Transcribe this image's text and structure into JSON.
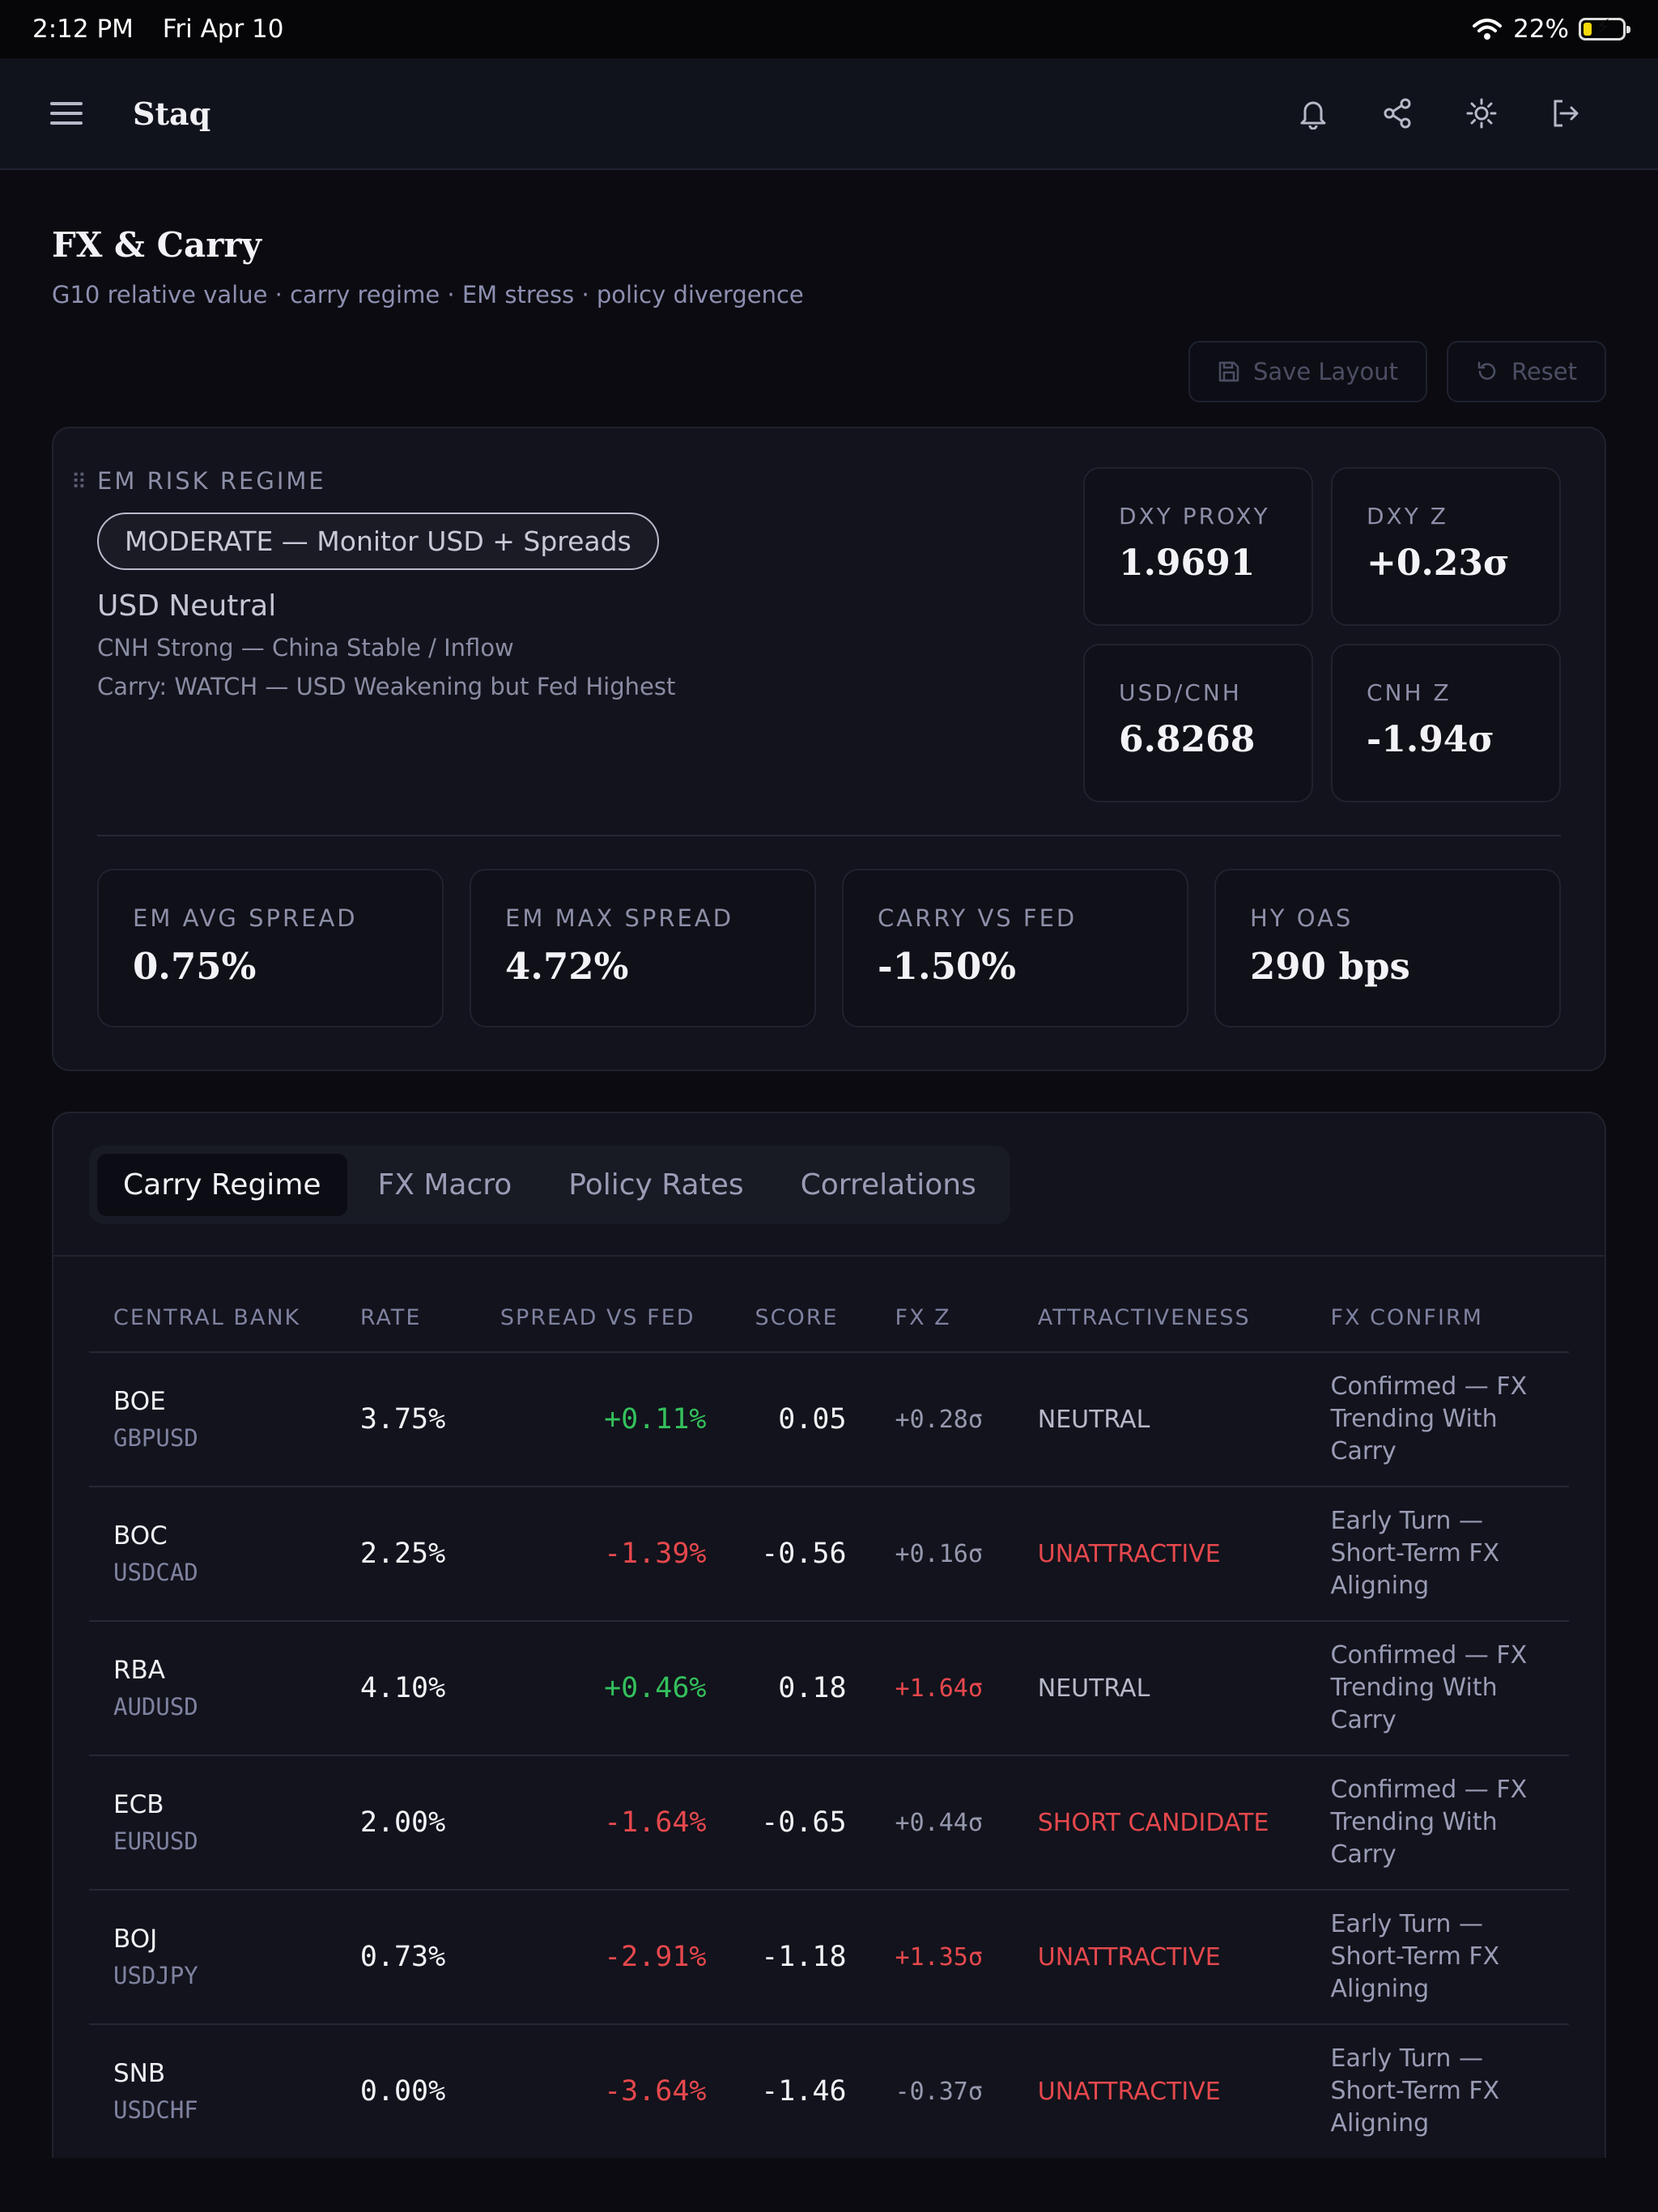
{
  "status": {
    "time": "2:12 PM",
    "date": "Fri Apr 10",
    "battery": "22%",
    "battery_level": 0.22
  },
  "app": {
    "brand": "Staq"
  },
  "header": {
    "title": "FX & Carry",
    "subtitle": "G10 relative value · carry regime · EM stress · policy divergence"
  },
  "actions": {
    "save": "Save Layout",
    "reset": "Reset"
  },
  "regime": {
    "label": "EM RISK REGIME",
    "pill": "MODERATE — Monitor USD + Spreads",
    "usd": "USD Neutral",
    "notes": [
      "CNH Strong — China Stable / Inflow",
      "Carry: WATCH — USD Weakening but Fed Highest"
    ],
    "metrics": [
      {
        "label": "DXY PROXY",
        "value": "1.9691"
      },
      {
        "label": "DXY Z",
        "value": "+0.23σ"
      },
      {
        "label": "USD/CNH",
        "value": "6.8268"
      },
      {
        "label": "CNH Z",
        "value": "-1.94σ"
      }
    ],
    "stats": [
      {
        "label": "EM AVG SPREAD",
        "value": "0.75%"
      },
      {
        "label": "EM MAX SPREAD",
        "value": "4.72%"
      },
      {
        "label": "CARRY VS FED",
        "value": "-1.50%"
      },
      {
        "label": "HY OAS",
        "value": "290 bps"
      }
    ]
  },
  "tabs": [
    "Carry Regime",
    "FX Macro",
    "Policy Rates",
    "Correlations"
  ],
  "table": {
    "headers": [
      "CENTRAL BANK",
      "RATE",
      "SPREAD VS FED",
      "SCORE",
      "FX Z",
      "ATTRACTIVENESS",
      "FX CONFIRM"
    ],
    "rows": [
      {
        "bank": "BOE",
        "pair": "GBPUSD",
        "rate": "3.75%",
        "spread": "+0.11%",
        "score": "0.05",
        "fxz": "+0.28σ",
        "attr": "NEUTRAL",
        "confirm": "Confirmed — FX Trending With Carry"
      },
      {
        "bank": "BOC",
        "pair": "USDCAD",
        "rate": "2.25%",
        "spread": "-1.39%",
        "score": "-0.56",
        "fxz": "+0.16σ",
        "attr": "UNATTRACTIVE",
        "confirm": "Early Turn — Short-Term FX Aligning"
      },
      {
        "bank": "RBA",
        "pair": "AUDUSD",
        "rate": "4.10%",
        "spread": "+0.46%",
        "score": "0.18",
        "fxz": "+1.64σ",
        "attr": "NEUTRAL",
        "confirm": "Confirmed — FX Trending With Carry"
      },
      {
        "bank": "ECB",
        "pair": "EURUSD",
        "rate": "2.00%",
        "spread": "-1.64%",
        "score": "-0.65",
        "fxz": "+0.44σ",
        "attr": "SHORT CANDIDATE",
        "confirm": "Confirmed — FX Trending With Carry"
      },
      {
        "bank": "BOJ",
        "pair": "USDJPY",
        "rate": "0.73%",
        "spread": "-2.91%",
        "score": "-1.18",
        "fxz": "+1.35σ",
        "attr": "UNATTRACTIVE",
        "confirm": "Early Turn — Short-Term FX Aligning"
      },
      {
        "bank": "SNB",
        "pair": "USDCHF",
        "rate": "0.00%",
        "spread": "-3.64%",
        "score": "-1.46",
        "fxz": "-0.37σ",
        "attr": "UNATTRACTIVE",
        "confirm": "Early Turn — Short-Term FX Aligning"
      }
    ]
  },
  "colors": {
    "accent_green": "#34c05c",
    "accent_red": "#e5484d",
    "background": "#0b0b11"
  },
  "icons": [
    "menu-icon",
    "bell-icon",
    "share-icon",
    "sun-icon",
    "logout-icon",
    "save-icon",
    "reset-icon",
    "drag-handle-icon",
    "wifi-icon",
    "battery-icon"
  ]
}
